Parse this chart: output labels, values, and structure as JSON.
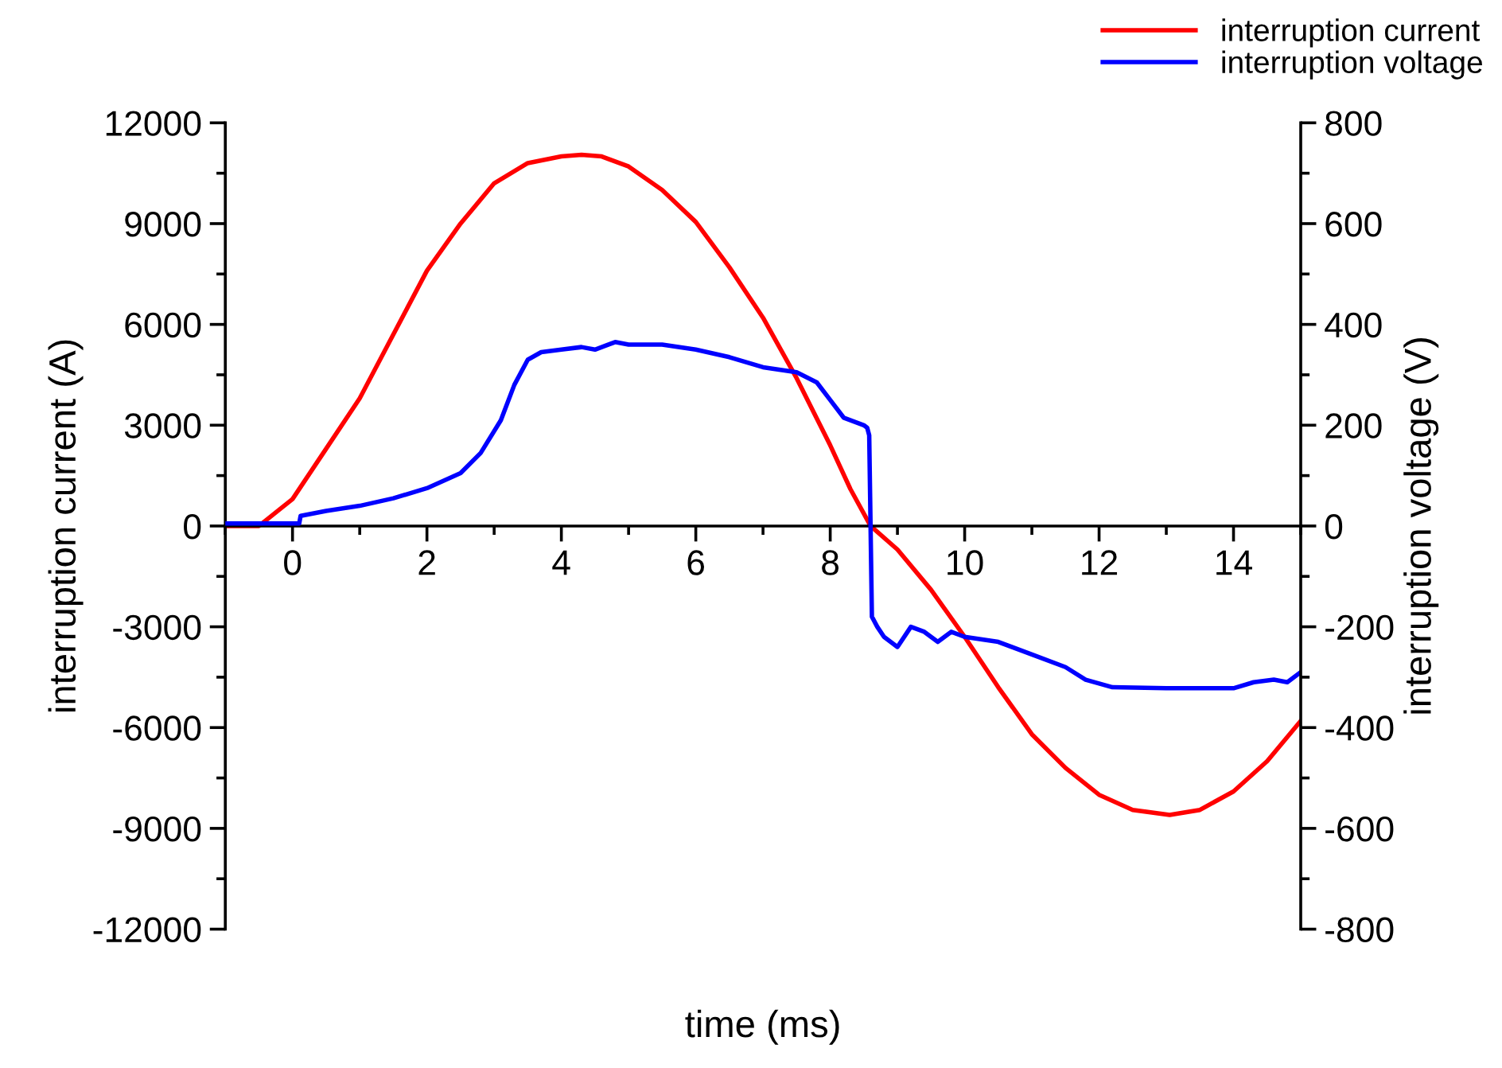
{
  "chart_data": {
    "type": "line",
    "xlabel": "time (ms)",
    "ylabel": "interruption current (A)",
    "y2label": "interruption voltage (V)",
    "xlim": [
      -1,
      15
    ],
    "xticks": [
      0,
      2,
      4,
      6,
      8,
      10,
      12,
      14
    ],
    "ylim": [
      -12000,
      12000
    ],
    "yticks": [
      -12000,
      -9000,
      -6000,
      -3000,
      0,
      3000,
      6000,
      9000,
      12000
    ],
    "y2lim": [
      -800,
      800
    ],
    "y2ticks": [
      -800,
      -600,
      -400,
      -200,
      0,
      200,
      400,
      600,
      800
    ],
    "legend": "top right",
    "grid": false,
    "marker": "none",
    "line_style": "solid",
    "series": [
      {
        "name": "interruption current",
        "color": "#ff0000",
        "x": [
          -1,
          -0.5,
          0,
          0.5,
          1,
          1.5,
          2,
          2.5,
          3,
          3.5,
          4,
          4.3,
          4.6,
          5,
          5.5,
          6,
          6.5,
          7,
          7.5,
          8,
          8.3,
          8.6,
          9,
          9.5,
          10,
          10.5,
          11,
          11.5,
          12,
          12.5,
          13.05,
          13.5,
          14,
          14.5,
          15
        ],
        "values": [
          0,
          0,
          800,
          2300,
          3800,
          5700,
          7600,
          9000,
          10200,
          10800,
          11000,
          11050,
          11000,
          10700,
          10000,
          9050,
          7700,
          6200,
          4400,
          2400,
          1100,
          0,
          -700,
          -1900,
          -3300,
          -4800,
          -6200,
          -7200,
          -8000,
          -8450,
          -8600,
          -8450,
          -7900,
          -7000,
          -5800
        ]
      },
      {
        "name": "interruption voltage",
        "color": "#0000ff",
        "axis": "y2",
        "x": [
          -1,
          0.1,
          0.12,
          0.5,
          1,
          1.5,
          2,
          2.5,
          2.8,
          3.1,
          3.3,
          3.5,
          3.7,
          4,
          4.3,
          4.5,
          4.8,
          5,
          5.5,
          6,
          6.5,
          7,
          7.5,
          7.8,
          8,
          8.2,
          8.5,
          8.55,
          8.58,
          8.6,
          8.62,
          8.7,
          8.8,
          9,
          9.2,
          9.4,
          9.6,
          9.8,
          10,
          10.5,
          11,
          11.5,
          11.8,
          12.2,
          13,
          13.5,
          14,
          14.3,
          14.6,
          14.8,
          15
        ],
        "values": [
          5,
          5,
          20,
          30,
          40,
          55,
          75,
          105,
          145,
          210,
          280,
          330,
          345,
          350,
          355,
          350,
          365,
          360,
          360,
          350,
          335,
          315,
          305,
          285,
          250,
          215,
          200,
          195,
          180,
          0,
          -180,
          -200,
          -220,
          -240,
          -200,
          -210,
          -230,
          -210,
          -220,
          -230,
          -255,
          -280,
          -305,
          -320,
          -322,
          -322,
          -322,
          -310,
          -305,
          -310,
          -290
        ]
      }
    ]
  }
}
